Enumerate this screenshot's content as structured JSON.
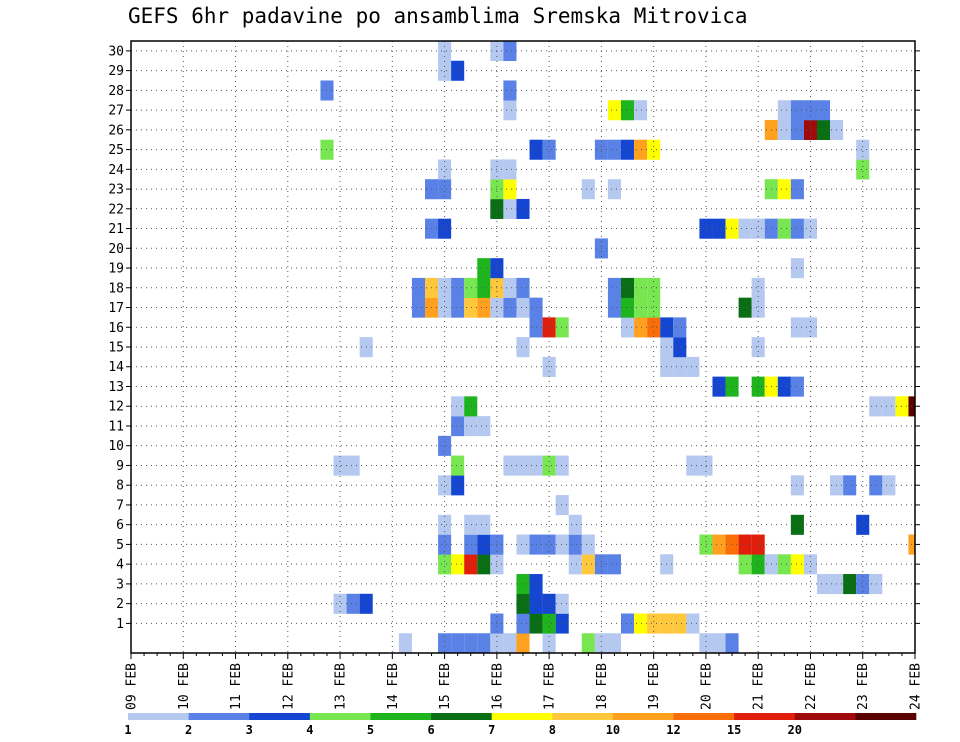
{
  "chart_data": {
    "type": "heatmap",
    "title": "GEFS 6hr padavine po ansamblima Sremska Mitrovica",
    "x_tick_labels": [
      "09 FEB",
      "10 FEB",
      "11 FEB",
      "12 FEB",
      "13 FEB",
      "14 FEB",
      "15 FEB",
      "16 FEB",
      "17 FEB",
      "18 FEB",
      "19 FEB",
      "20 FEB",
      "21 FEB",
      "22 FEB",
      "23 FEB",
      "24 FEB"
    ],
    "y_tick_labels": [
      "1",
      "2",
      "3",
      "4",
      "5",
      "6",
      "7",
      "8",
      "9",
      "10",
      "11",
      "12",
      "13",
      "14",
      "15",
      "16",
      "17",
      "18",
      "19",
      "20",
      "21",
      "22",
      "23",
      "24",
      "25",
      "26",
      "27",
      "28",
      "29",
      "30"
    ],
    "xlim": [
      0,
      60
    ],
    "ylim": [
      0,
      30
    ],
    "grid": true,
    "time_steps_per_day": 4,
    "colorbar": {
      "labels": [
        "1",
        "2",
        "3",
        "4",
        "5",
        "6",
        "7",
        "8",
        "10",
        "12",
        "15",
        "20"
      ],
      "colors": [
        "#b4c8f0",
        "#5a82e6",
        "#1446d2",
        "#78e650",
        "#1eb41e",
        "#0a6e14",
        "#ffff00",
        "#ffc83c",
        "#ffa01e",
        "#fa6e0a",
        "#e11e0a",
        "#a00a0a",
        "#5a0000"
      ]
    },
    "members": [
      {
        "member": 0,
        "cells": [
          [
            21,
            1
          ],
          [
            24,
            2
          ],
          [
            25,
            2
          ],
          [
            26,
            2
          ],
          [
            27,
            2
          ],
          [
            28,
            1
          ],
          [
            29,
            1
          ],
          [
            30,
            9
          ],
          [
            32,
            1
          ],
          [
            35,
            4
          ],
          [
            36,
            1
          ],
          [
            37,
            1
          ],
          [
            44,
            1
          ],
          [
            45,
            1
          ],
          [
            46,
            2
          ]
        ]
      },
      {
        "member": 1,
        "cells": [
          [
            28,
            2
          ],
          [
            30,
            2
          ],
          [
            31,
            6
          ],
          [
            32,
            5
          ],
          [
            33,
            3
          ],
          [
            38,
            2
          ],
          [
            39,
            7
          ],
          [
            40,
            8
          ],
          [
            41,
            8
          ],
          [
            42,
            8
          ],
          [
            43,
            1
          ]
        ]
      },
      {
        "member": 2,
        "cells": [
          [
            16,
            1
          ],
          [
            17,
            2
          ],
          [
            18,
            3
          ],
          [
            30,
            6
          ],
          [
            31,
            3
          ],
          [
            32,
            3
          ],
          [
            33,
            1
          ]
        ]
      },
      {
        "member": 3,
        "cells": [
          [
            30,
            5
          ],
          [
            31,
            3
          ],
          [
            53,
            1
          ],
          [
            54,
            1
          ],
          [
            55,
            6
          ],
          [
            56,
            2
          ],
          [
            57,
            1
          ]
        ]
      },
      {
        "member": 4,
        "cells": [
          [
            24,
            4
          ],
          [
            25,
            7
          ],
          [
            26,
            11
          ],
          [
            27,
            6
          ],
          [
            28,
            1
          ],
          [
            34,
            1
          ],
          [
            35,
            8
          ],
          [
            36,
            2
          ],
          [
            37,
            2
          ],
          [
            41,
            1
          ],
          [
            47,
            4
          ],
          [
            48,
            5
          ],
          [
            49,
            1
          ],
          [
            50,
            4
          ],
          [
            51,
            7
          ],
          [
            52,
            1
          ]
        ]
      },
      {
        "member": 5,
        "cells": [
          [
            24,
            2
          ],
          [
            26,
            2
          ],
          [
            27,
            3
          ],
          [
            28,
            2
          ],
          [
            30,
            1
          ],
          [
            31,
            2
          ],
          [
            32,
            2
          ],
          [
            33,
            1
          ],
          [
            34,
            2
          ],
          [
            35,
            1
          ],
          [
            44,
            4
          ],
          [
            45,
            9
          ],
          [
            46,
            10
          ],
          [
            47,
            11
          ],
          [
            48,
            11
          ],
          [
            60,
            9
          ]
        ]
      },
      {
        "member": 6,
        "cells": [
          [
            24,
            1
          ],
          [
            26,
            1
          ],
          [
            27,
            1
          ],
          [
            34,
            1
          ],
          [
            51,
            6
          ],
          [
            56,
            3
          ]
        ]
      },
      {
        "member": 7,
        "cells": [
          [
            33,
            1
          ]
        ]
      },
      {
        "member": 8,
        "cells": [
          [
            24,
            1
          ],
          [
            25,
            3
          ],
          [
            51,
            1
          ],
          [
            54,
            1
          ],
          [
            55,
            2
          ],
          [
            57,
            2
          ],
          [
            58,
            1
          ]
        ]
      },
      {
        "member": 9,
        "cells": [
          [
            16,
            1
          ],
          [
            17,
            1
          ],
          [
            25,
            4
          ],
          [
            29,
            1
          ],
          [
            30,
            1
          ],
          [
            31,
            1
          ],
          [
            32,
            4
          ],
          [
            33,
            1
          ],
          [
            43,
            1
          ],
          [
            44,
            1
          ]
        ]
      },
      {
        "member": 10,
        "cells": [
          [
            24,
            2
          ]
        ]
      },
      {
        "member": 11,
        "cells": [
          [
            25,
            2
          ],
          [
            26,
            1
          ],
          [
            27,
            1
          ]
        ]
      },
      {
        "member": 12,
        "cells": [
          [
            25,
            1
          ],
          [
            26,
            5
          ],
          [
            57,
            1
          ],
          [
            58,
            1
          ],
          [
            59,
            7
          ],
          [
            60,
            13
          ]
        ]
      },
      {
        "member": 13,
        "cells": [
          [
            45,
            3
          ],
          [
            46,
            5
          ],
          [
            48,
            5
          ],
          [
            49,
            7
          ],
          [
            50,
            3
          ],
          [
            51,
            2
          ]
        ]
      },
      {
        "member": 14,
        "cells": [
          [
            32,
            1
          ],
          [
            41,
            1
          ],
          [
            42,
            1
          ],
          [
            43,
            1
          ]
        ]
      },
      {
        "member": 15,
        "cells": [
          [
            18,
            1
          ],
          [
            30,
            1
          ],
          [
            41,
            1
          ],
          [
            42,
            3
          ],
          [
            48,
            1
          ]
        ]
      },
      {
        "member": 16,
        "cells": [
          [
            31,
            2
          ],
          [
            32,
            11
          ],
          [
            33,
            4
          ],
          [
            38,
            1
          ],
          [
            39,
            9
          ],
          [
            40,
            10
          ],
          [
            41,
            3
          ],
          [
            42,
            2
          ],
          [
            51,
            1
          ],
          [
            52,
            1
          ]
        ]
      },
      {
        "member": 17,
        "cells": [
          [
            22,
            2
          ],
          [
            23,
            9
          ],
          [
            24,
            1
          ],
          [
            25,
            2
          ],
          [
            26,
            8
          ],
          [
            27,
            9
          ],
          [
            28,
            1
          ],
          [
            29,
            2
          ],
          [
            30,
            1
          ],
          [
            31,
            2
          ],
          [
            37,
            2
          ],
          [
            38,
            5
          ],
          [
            39,
            4
          ],
          [
            40,
            4
          ],
          [
            47,
            6
          ],
          [
            48,
            1
          ]
        ]
      },
      {
        "member": 18,
        "cells": [
          [
            22,
            2
          ],
          [
            23,
            8
          ],
          [
            24,
            1
          ],
          [
            25,
            2
          ],
          [
            26,
            4
          ],
          [
            27,
            5
          ],
          [
            28,
            8
          ],
          [
            29,
            1
          ],
          [
            30,
            2
          ],
          [
            37,
            2
          ],
          [
            38,
            6
          ],
          [
            39,
            4
          ],
          [
            40,
            4
          ],
          [
            48,
            1
          ]
        ]
      },
      {
        "member": 19,
        "cells": [
          [
            27,
            5
          ],
          [
            28,
            3
          ],
          [
            51,
            1
          ]
        ]
      },
      {
        "member": 20,
        "cells": [
          [
            36,
            2
          ]
        ]
      },
      {
        "member": 21,
        "cells": [
          [
            23,
            2
          ],
          [
            24,
            3
          ],
          [
            44,
            3
          ],
          [
            45,
            3
          ],
          [
            46,
            7
          ],
          [
            47,
            1
          ],
          [
            48,
            1
          ],
          [
            49,
            2
          ],
          [
            50,
            4
          ],
          [
            51,
            2
          ],
          [
            52,
            1
          ]
        ]
      },
      {
        "member": 22,
        "cells": [
          [
            28,
            6
          ],
          [
            29,
            1
          ],
          [
            30,
            3
          ]
        ]
      },
      {
        "member": 23,
        "cells": [
          [
            23,
            2
          ],
          [
            24,
            2
          ],
          [
            28,
            4
          ],
          [
            29,
            7
          ],
          [
            35,
            1
          ],
          [
            37,
            1
          ],
          [
            49,
            4
          ],
          [
            50,
            7
          ],
          [
            51,
            2
          ]
        ]
      },
      {
        "member": 24,
        "cells": [
          [
            24,
            1
          ],
          [
            28,
            1
          ],
          [
            29,
            1
          ],
          [
            56,
            4
          ]
        ]
      },
      {
        "member": 25,
        "cells": [
          [
            15,
            4
          ],
          [
            31,
            3
          ],
          [
            32,
            2
          ],
          [
            36,
            2
          ],
          [
            37,
            2
          ],
          [
            38,
            3
          ],
          [
            39,
            9
          ],
          [
            40,
            7
          ],
          [
            56,
            1
          ]
        ]
      },
      {
        "member": 26,
        "cells": [
          [
            49,
            9
          ],
          [
            50,
            1
          ],
          [
            51,
            2
          ],
          [
            52,
            12
          ],
          [
            53,
            6
          ],
          [
            54,
            1
          ]
        ]
      },
      {
        "member": 27,
        "cells": [
          [
            29,
            1
          ],
          [
            37,
            7
          ],
          [
            38,
            5
          ],
          [
            39,
            1
          ],
          [
            50,
            1
          ],
          [
            51,
            2
          ],
          [
            52,
            2
          ],
          [
            53,
            2
          ]
        ]
      },
      {
        "member": 28,
        "cells": [
          [
            15,
            2
          ],
          [
            29,
            2
          ]
        ]
      },
      {
        "member": 29,
        "cells": [
          [
            24,
            1
          ],
          [
            25,
            3
          ]
        ]
      },
      {
        "member": 30,
        "cells": [
          [
            24,
            1
          ],
          [
            28,
            1
          ],
          [
            29,
            2
          ]
        ]
      }
    ]
  }
}
